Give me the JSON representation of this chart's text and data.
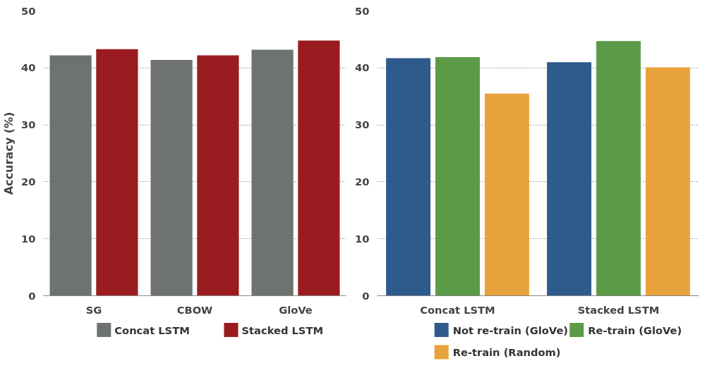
{
  "chart_data": [
    {
      "type": "bar",
      "ylabel": "Accuracy (%)",
      "categories": [
        "SG",
        "CBOW",
        "GloVe"
      ],
      "ylim": [
        0,
        50
      ],
      "yticks": [
        0,
        10,
        20,
        30,
        40,
        50
      ],
      "grid": "y",
      "legend": "bottom",
      "series": [
        {
          "name": "Concat LSTM",
          "color": "#6e7370",
          "values": [
            42.2,
            41.4,
            43.2
          ]
        },
        {
          "name": "Stacked LSTM",
          "color": "#9b1c20",
          "values": [
            43.3,
            42.2,
            44.8
          ]
        }
      ]
    },
    {
      "type": "bar",
      "categories": [
        "Concat LSTM",
        "Stacked LSTM"
      ],
      "ylim": [
        0,
        50
      ],
      "yticks": [
        0,
        10,
        20,
        30,
        40,
        50
      ],
      "grid": "y",
      "legend": "bottom",
      "series": [
        {
          "name": "Not re-train (GloVe)",
          "color": "#2e5a8c",
          "values": [
            41.7,
            41.0
          ]
        },
        {
          "name": "Re-train (GloVe)",
          "color": "#5c9a48",
          "values": [
            41.9,
            44.7
          ]
        },
        {
          "name": "Re-train (Random)",
          "color": "#e8a23c",
          "values": [
            35.5,
            40.1
          ]
        }
      ]
    }
  ]
}
